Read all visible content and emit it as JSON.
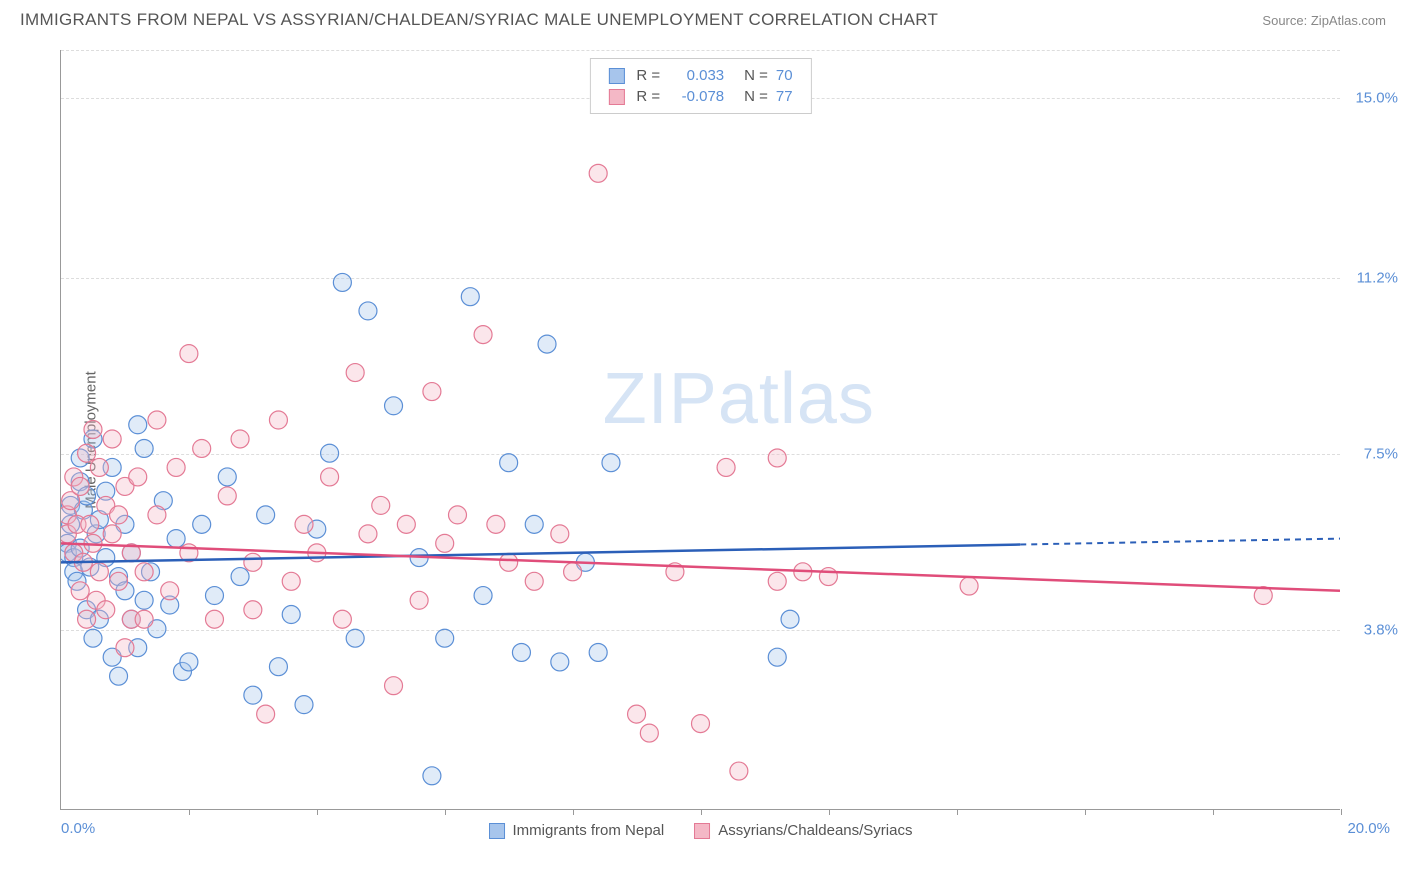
{
  "header": {
    "title": "IMMIGRANTS FROM NEPAL VS ASSYRIAN/CHALDEAN/SYRIAC MALE UNEMPLOYMENT CORRELATION CHART",
    "source_label": "Source:",
    "source_name": "ZipAtlas.com"
  },
  "chart": {
    "type": "scatter",
    "y_axis_label": "Male Unemployment",
    "x_min_label": "0.0%",
    "x_max_label": "20.0%",
    "xlim": [
      0,
      20
    ],
    "ylim": [
      0,
      16
    ],
    "x_tick_positions_pct": [
      10,
      20,
      30,
      40,
      50,
      60,
      70,
      80,
      90,
      100
    ],
    "y_gridlines": [
      {
        "value": 3.8,
        "label": "3.8%"
      },
      {
        "value": 7.5,
        "label": "7.5%"
      },
      {
        "value": 11.2,
        "label": "11.2%"
      },
      {
        "value": 15.0,
        "label": "15.0%"
      }
    ],
    "background_color": "#ffffff",
    "grid_color": "#dddddd",
    "axis_color": "#999999",
    "tick_label_color": "#5b8fd6",
    "marker_radius": 9,
    "marker_fill_opacity": 0.35,
    "marker_stroke_width": 1.2,
    "watermark_text_bold": "ZIP",
    "watermark_text_light": "atlas",
    "watermark_color": "#d6e4f5",
    "series": [
      {
        "id": "nepal",
        "name": "Immigrants from Nepal",
        "fill_color": "#a7c5ec",
        "stroke_color": "#5b8fd6",
        "line_color": "#2b5fb8",
        "r_value": "0.033",
        "n_value": "70",
        "trend": {
          "y_at_x0": 5.2,
          "y_at_xmax": 5.7,
          "dash_from_x": 15.0
        },
        "points": [
          [
            0.1,
            5.6
          ],
          [
            0.1,
            5.4
          ],
          [
            0.15,
            6.4
          ],
          [
            0.15,
            6.0
          ],
          [
            0.2,
            5.3
          ],
          [
            0.2,
            5.0
          ],
          [
            0.25,
            4.8
          ],
          [
            0.3,
            7.4
          ],
          [
            0.3,
            6.9
          ],
          [
            0.3,
            5.5
          ],
          [
            0.35,
            6.3
          ],
          [
            0.4,
            4.2
          ],
          [
            0.4,
            6.6
          ],
          [
            0.45,
            5.1
          ],
          [
            0.5,
            7.8
          ],
          [
            0.5,
            3.6
          ],
          [
            0.55,
            5.8
          ],
          [
            0.6,
            6.1
          ],
          [
            0.6,
            4.0
          ],
          [
            0.7,
            6.7
          ],
          [
            0.7,
            5.3
          ],
          [
            0.8,
            7.2
          ],
          [
            0.8,
            3.2
          ],
          [
            0.9,
            4.9
          ],
          [
            0.9,
            2.8
          ],
          [
            1.0,
            4.6
          ],
          [
            1.0,
            6.0
          ],
          [
            1.1,
            4.0
          ],
          [
            1.1,
            5.4
          ],
          [
            1.2,
            8.1
          ],
          [
            1.2,
            3.4
          ],
          [
            1.3,
            7.6
          ],
          [
            1.3,
            4.4
          ],
          [
            1.4,
            5.0
          ],
          [
            1.5,
            3.8
          ],
          [
            1.6,
            6.5
          ],
          [
            1.7,
            4.3
          ],
          [
            1.8,
            5.7
          ],
          [
            1.9,
            2.9
          ],
          [
            2.0,
            3.1
          ],
          [
            2.2,
            6.0
          ],
          [
            2.4,
            4.5
          ],
          [
            2.6,
            7.0
          ],
          [
            2.8,
            4.9
          ],
          [
            3.0,
            2.4
          ],
          [
            3.2,
            6.2
          ],
          [
            3.4,
            3.0
          ],
          [
            3.6,
            4.1
          ],
          [
            3.8,
            2.2
          ],
          [
            4.0,
            5.9
          ],
          [
            4.2,
            7.5
          ],
          [
            4.4,
            11.1
          ],
          [
            4.6,
            3.6
          ],
          [
            4.8,
            10.5
          ],
          [
            5.2,
            8.5
          ],
          [
            5.6,
            5.3
          ],
          [
            5.8,
            0.7
          ],
          [
            6.0,
            3.6
          ],
          [
            6.4,
            10.8
          ],
          [
            6.6,
            4.5
          ],
          [
            7.0,
            7.3
          ],
          [
            7.2,
            3.3
          ],
          [
            7.4,
            6.0
          ],
          [
            7.6,
            9.8
          ],
          [
            7.8,
            3.1
          ],
          [
            8.2,
            5.2
          ],
          [
            8.4,
            3.3
          ],
          [
            8.6,
            7.3
          ],
          [
            11.2,
            3.2
          ],
          [
            11.4,
            4.0
          ]
        ]
      },
      {
        "id": "assyrian",
        "name": "Assyrians/Chaldeans/Syriacs",
        "fill_color": "#f4b8c6",
        "stroke_color": "#e47a95",
        "line_color": "#e04d7a",
        "r_value": "-0.078",
        "n_value": "77",
        "trend": {
          "y_at_x0": 5.6,
          "y_at_xmax": 4.6,
          "dash_from_x": null
        },
        "points": [
          [
            0.1,
            6.2
          ],
          [
            0.1,
            5.8
          ],
          [
            0.15,
            6.5
          ],
          [
            0.2,
            5.4
          ],
          [
            0.2,
            7.0
          ],
          [
            0.25,
            6.0
          ],
          [
            0.3,
            4.6
          ],
          [
            0.3,
            6.8
          ],
          [
            0.35,
            5.2
          ],
          [
            0.4,
            7.5
          ],
          [
            0.4,
            4.0
          ],
          [
            0.45,
            6.0
          ],
          [
            0.5,
            5.6
          ],
          [
            0.5,
            8.0
          ],
          [
            0.55,
            4.4
          ],
          [
            0.6,
            7.2
          ],
          [
            0.6,
            5.0
          ],
          [
            0.7,
            6.4
          ],
          [
            0.7,
            4.2
          ],
          [
            0.8,
            5.8
          ],
          [
            0.8,
            7.8
          ],
          [
            0.9,
            4.8
          ],
          [
            0.9,
            6.2
          ],
          [
            1.0,
            3.4
          ],
          [
            1.0,
            6.8
          ],
          [
            1.1,
            5.4
          ],
          [
            1.1,
            4.0
          ],
          [
            1.2,
            7.0
          ],
          [
            1.3,
            5.0
          ],
          [
            1.3,
            4.0
          ],
          [
            1.5,
            6.2
          ],
          [
            1.5,
            8.2
          ],
          [
            1.7,
            4.6
          ],
          [
            1.8,
            7.2
          ],
          [
            2.0,
            9.6
          ],
          [
            2.0,
            5.4
          ],
          [
            2.2,
            7.6
          ],
          [
            2.4,
            4.0
          ],
          [
            2.6,
            6.6
          ],
          [
            2.8,
            7.8
          ],
          [
            3.0,
            5.2
          ],
          [
            3.2,
            2.0
          ],
          [
            3.4,
            8.2
          ],
          [
            3.6,
            4.8
          ],
          [
            3.8,
            6.0
          ],
          [
            4.0,
            5.4
          ],
          [
            4.2,
            7.0
          ],
          [
            4.4,
            4.0
          ],
          [
            4.6,
            9.2
          ],
          [
            4.8,
            5.8
          ],
          [
            5.0,
            6.4
          ],
          [
            5.2,
            2.6
          ],
          [
            5.4,
            6.0
          ],
          [
            5.6,
            4.4
          ],
          [
            5.8,
            8.8
          ],
          [
            6.0,
            5.6
          ],
          [
            6.2,
            6.2
          ],
          [
            6.6,
            10.0
          ],
          [
            6.8,
            6.0
          ],
          [
            7.0,
            5.2
          ],
          [
            7.4,
            4.8
          ],
          [
            7.8,
            5.8
          ],
          [
            8.0,
            5.0
          ],
          [
            8.4,
            13.4
          ],
          [
            9.0,
            2.0
          ],
          [
            9.6,
            5.0
          ],
          [
            10.0,
            1.8
          ],
          [
            10.4,
            7.2
          ],
          [
            10.6,
            0.8
          ],
          [
            11.2,
            7.4
          ],
          [
            11.2,
            4.8
          ],
          [
            11.6,
            5.0
          ],
          [
            12.0,
            4.9
          ],
          [
            14.2,
            4.7
          ],
          [
            18.8,
            4.5
          ],
          [
            9.2,
            1.6
          ],
          [
            3.0,
            4.2
          ]
        ]
      }
    ],
    "legend_labels": {
      "r": "R =",
      "n": "N ="
    }
  }
}
